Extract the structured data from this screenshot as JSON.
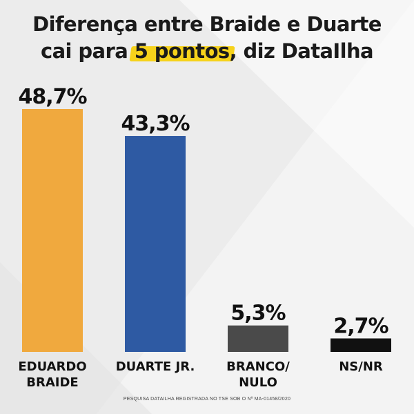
{
  "title": {
    "line1": "Diferença entre Braide e Duarte",
    "line2_prefix": "cai para ",
    "line2_highlight": "5 pontos",
    "line2_suffix": ", diz DataIlha"
  },
  "chart_data": {
    "type": "bar",
    "categories": [
      [
        "EDUARDO",
        "BRAIDE"
      ],
      [
        "DUARTE JR."
      ],
      [
        "BRANCO/",
        "NULO"
      ],
      [
        "NS/NR"
      ]
    ],
    "values": [
      48.7,
      43.3,
      5.3,
      2.7
    ],
    "value_labels": [
      "48,7%",
      "43,3%",
      "5,3%",
      "2,7%"
    ],
    "colors": [
      "#f0a93e",
      "#2e5aa3",
      "#4a4a4a",
      "#111111"
    ],
    "ylim": [
      0,
      48.7
    ]
  },
  "footnote": "PESQUISA DATAILHA REGISTRADA NO TSE SOB O Nº MA-01458/2020"
}
